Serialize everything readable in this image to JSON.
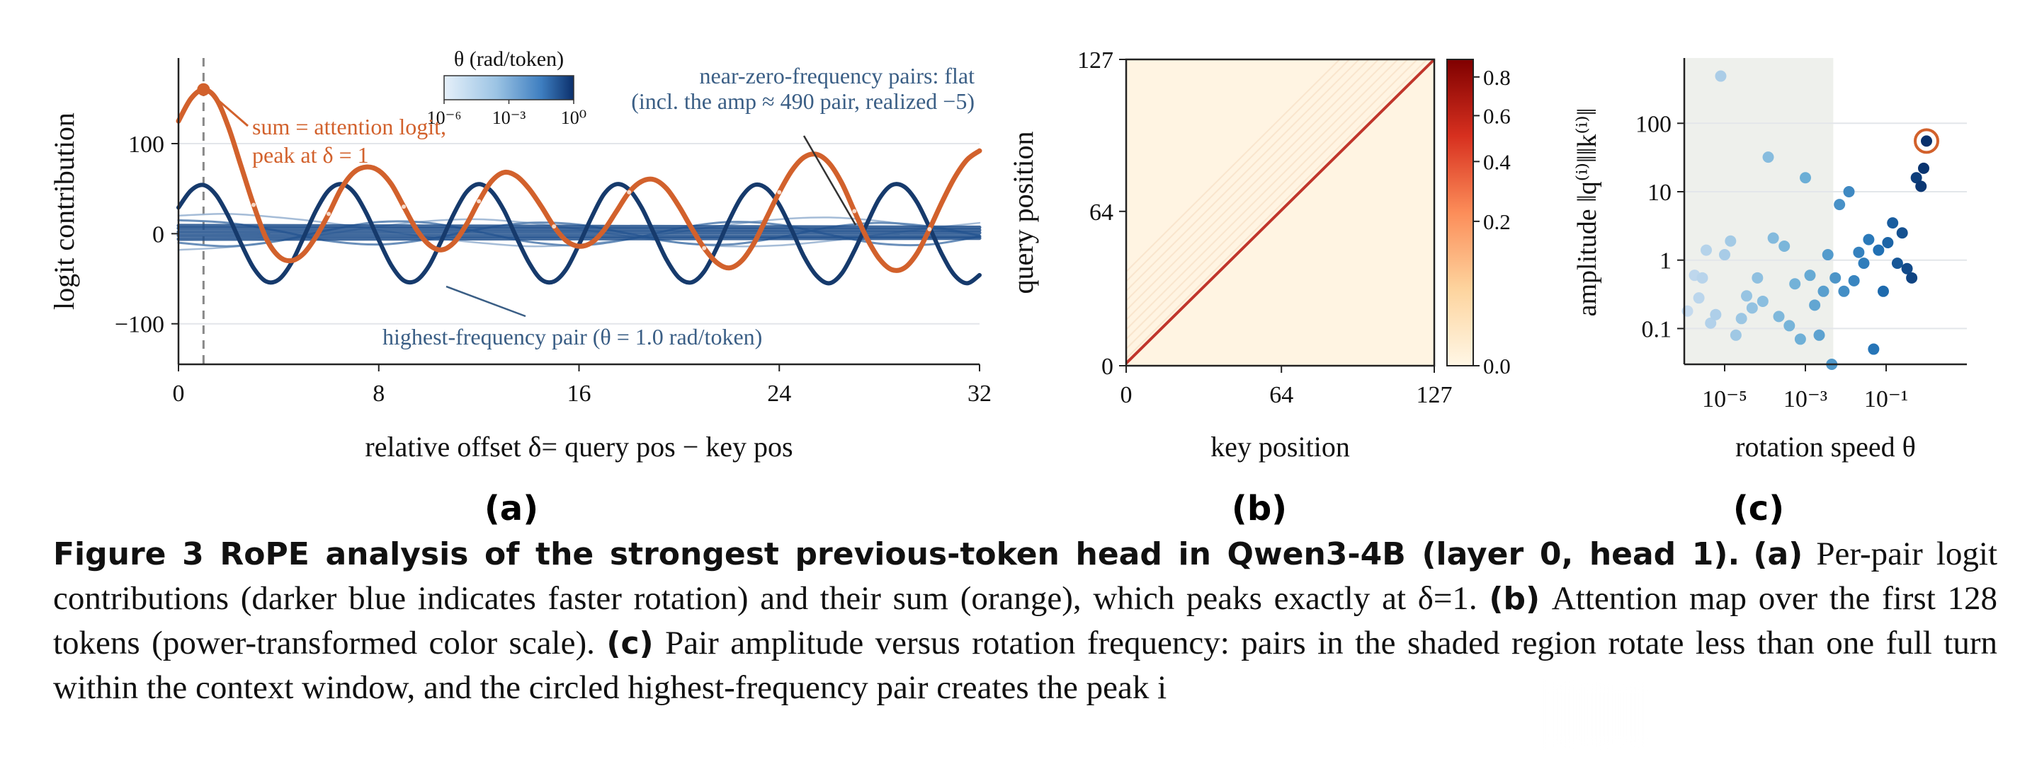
{
  "figure": {
    "caption_title": "Figure 3  RoPE analysis of the strongest previous-token head in Qwen3-4B (layer 0, head 1).",
    "caption_parts": [
      {
        "label": "(a)",
        "text": " Per-pair logit contributions (darker blue indicates faster rotation) and their sum (orange), which peaks exactly at δ=1. "
      },
      {
        "label": "(b)",
        "text": " Attention map over the first 128 tokens (power-transformed color scale). "
      },
      {
        "label": "(c)",
        "text": " Pair amplitude versus rotation frequency: pairs in the shaded region rotate less than one full turn within the context window, and the circled highest-frequency pair creates the peak i"
      }
    ],
    "panel_labels": [
      "(a)",
      "(b)",
      "(c)"
    ]
  },
  "colors": {
    "orange": "#d2612c",
    "dark_blue": "#163a6c",
    "mid_blue": "#2d6fb4",
    "light_blue": "#a8cbe6",
    "shade": "#eef0ec",
    "heat_bg": "#fff4e2",
    "heat_diag": "#c0352b",
    "annot_blue": "#3a5e85"
  },
  "chart_data": [
    {
      "type": "line",
      "xlabel": "relative offset  δ= query pos − key pos",
      "ylabel": "logit contribution",
      "xlim": [
        0,
        32
      ],
      "ylim": [
        -145,
        195
      ],
      "xticks": [
        0,
        8,
        16,
        24,
        32
      ],
      "yticks": [
        -100,
        0,
        100
      ],
      "ytick_labels": [
        "−100",
        "0",
        "100"
      ],
      "vline_x": 1,
      "colorbar": {
        "title": "θ (rad/token)",
        "tick_labels": [
          "10⁻⁶",
          "10⁻³",
          "10⁰"
        ]
      },
      "annotations": {
        "sum": [
          "sum = attention logit,",
          "peak at δ = 1"
        ],
        "flat": [
          "near-zero-frequency pairs: flat",
          "(incl. the amp ≈ 490 pair, realized −5)"
        ],
        "highest": "highest-frequency pair (θ = 1.0 rad/token)"
      },
      "series": [
        {
          "name": "sum = attention logit",
          "kind": "sum",
          "x": [
            0,
            0.5,
            1,
            1.5,
            2,
            2.5,
            3,
            3.5,
            4,
            4.5,
            5,
            5.5,
            6,
            6.5,
            7,
            7.5,
            8,
            8.5,
            9,
            9.5,
            10,
            10.5,
            11,
            11.5,
            12,
            12.5,
            13,
            13.5,
            14,
            14.5,
            15,
            15.5,
            16,
            16.5,
            17,
            17.5,
            18,
            18.5,
            19,
            19.5,
            20,
            20.5,
            21,
            21.5,
            22,
            22.5,
            23,
            23.5,
            24,
            24.5,
            25,
            25.5,
            26,
            26.5,
            27,
            27.5,
            28,
            28.5,
            29,
            29.5,
            30,
            30.5,
            31,
            31.5,
            32
          ],
          "y": [
            125,
            150,
            160,
            150,
            118,
            75,
            32,
            -5,
            -25,
            -30,
            -22,
            -3,
            22,
            50,
            68,
            74,
            70,
            55,
            30,
            5,
            -12,
            -18,
            -10,
            10,
            36,
            58,
            68,
            64,
            50,
            30,
            8,
            -8,
            -14,
            -10,
            4,
            25,
            46,
            58,
            60,
            50,
            30,
            6,
            -16,
            -32,
            -38,
            -30,
            -10,
            18,
            46,
            70,
            85,
            88,
            78,
            56,
            25,
            -5,
            -28,
            -40,
            -38,
            -22,
            5,
            35,
            62,
            82,
            92
          ]
        },
        {
          "name": "highest-frequency pair (θ = 1.0 rad/token)",
          "kind": "highest",
          "x": [
            0,
            0.5,
            1,
            1.5,
            2,
            2.5,
            3,
            3.5,
            4,
            4.5,
            5,
            5.5,
            6,
            6.5,
            7,
            7.5,
            8,
            8.5,
            9,
            9.5,
            10,
            10.5,
            11,
            11.5,
            12,
            12.5,
            13,
            13.5,
            14,
            14.5,
            15,
            15.5,
            16,
            16.5,
            17,
            17.5,
            18,
            18.5,
            19,
            19.5,
            20,
            20.5,
            21,
            21.5,
            22,
            22.5,
            23,
            23.5,
            24,
            24.5,
            25,
            25.5,
            26,
            26.5,
            27,
            27.5,
            28,
            28.5,
            29,
            29.5,
            30,
            30.5,
            31,
            31.5,
            32
          ],
          "y": [
            29,
            48,
            54,
            43,
            19,
            -11,
            -38,
            -53,
            -51,
            -33,
            -4,
            26,
            48,
            55,
            46,
            23,
            -7,
            -35,
            -52,
            -52,
            -36,
            -8,
            22,
            46,
            55,
            47,
            26,
            -4,
            -32,
            -51,
            -53,
            -39,
            -12,
            18,
            44,
            55,
            49,
            29,
            0,
            -29,
            -49,
            -54,
            -42,
            -16,
            15,
            41,
            54,
            50,
            32,
            4,
            -26,
            -47,
            -55,
            -44,
            -19,
            11,
            39,
            54,
            52,
            35,
            7,
            -23,
            -46,
            -55,
            -46
          ]
        },
        {
          "name": "",
          "kind": "mid",
          "x": [
            0,
            2,
            4,
            6,
            8,
            10,
            12,
            14,
            16,
            18,
            20,
            22,
            24,
            26,
            28,
            30,
            32
          ],
          "y": [
            15,
            12,
            3,
            -8,
            -12,
            -6,
            5,
            12,
            10,
            0,
            -10,
            -12,
            -4,
            7,
            12,
            8,
            -2
          ]
        },
        {
          "name": "",
          "kind": "mid",
          "x": [
            0,
            2,
            4,
            6,
            8,
            10,
            12,
            14,
            16,
            18,
            20,
            22,
            24,
            26,
            28,
            30,
            32
          ],
          "y": [
            -10,
            -14,
            -8,
            4,
            13,
            12,
            2,
            -9,
            -13,
            -6,
            6,
            13,
            10,
            -1,
            -11,
            -12,
            -3
          ]
        },
        {
          "name": "",
          "kind": "light",
          "x": [
            0,
            2,
            4,
            6,
            8,
            10,
            12,
            14,
            16,
            18,
            20,
            22,
            24,
            26,
            28,
            30,
            32
          ],
          "y": [
            20,
            22,
            18,
            12,
            4,
            -4,
            -10,
            -14,
            -12,
            -6,
            2,
            10,
            16,
            18,
            14,
            6,
            -2
          ]
        },
        {
          "name": "",
          "kind": "light",
          "x": [
            0,
            2,
            4,
            6,
            8,
            10,
            12,
            14,
            16,
            18,
            20,
            22,
            24,
            26,
            28,
            30,
            32
          ],
          "y": [
            -18,
            -15,
            -8,
            0,
            8,
            14,
            16,
            12,
            5,
            -3,
            -10,
            -14,
            -13,
            -8,
            -1,
            6,
            12
          ]
        },
        {
          "name": "",
          "kind": "flat",
          "x": [
            0,
            32
          ],
          "y": [
            6,
            4
          ]
        },
        {
          "name": "",
          "kind": "flat",
          "x": [
            0,
            32
          ],
          "y": [
            2,
            1
          ]
        },
        {
          "name": "",
          "kind": "flat",
          "x": [
            0,
            32
          ],
          "y": [
            -2,
            -3
          ]
        },
        {
          "name": "",
          "kind": "flat",
          "x": [
            0,
            32
          ],
          "y": [
            -6,
            -5
          ]
        },
        {
          "name": "",
          "kind": "flat",
          "x": [
            0,
            32
          ],
          "y": [
            9,
            7
          ]
        }
      ],
      "peak_point": {
        "x": 1,
        "y": 160
      }
    },
    {
      "type": "heatmap",
      "xlabel": "key position",
      "ylabel": "query position",
      "xticks": [
        0,
        64,
        127
      ],
      "yticks": [
        0,
        64,
        127
      ],
      "colorbar_ticks": [
        0.0,
        0.2,
        0.4,
        0.6,
        0.8
      ],
      "colorbar_tick_labels": [
        "0.0",
        "0.2",
        "0.4",
        "0.6",
        "0.8"
      ],
      "description_values": {
        "diagonal_offset": 1,
        "size": 128
      }
    },
    {
      "type": "scatter",
      "xlabel": "rotation speed θ",
      "ylabel": "amplitude  ‖q⁽ⁱ⁾‖‖k⁽ⁱ⁾‖",
      "xscale": "log",
      "yscale": "log",
      "xlim": [
        1e-06,
        10
      ],
      "ylim": [
        0.03,
        900
      ],
      "xtick_labels": [
        "10⁻⁵",
        "10⁻³",
        "10⁻¹"
      ],
      "xticks": [
        1e-05,
        0.001,
        0.1
      ],
      "yticks": [
        0.1,
        1,
        10,
        100
      ],
      "ytick_labels": [
        "0.1",
        "1",
        "10",
        "100"
      ],
      "shaded_x_max": 0.0049,
      "circled_point": {
        "x": 1.0,
        "y": 55
      },
      "points": [
        {
          "x": 1.2e-06,
          "y": 0.18
        },
        {
          "x": 1.8e-06,
          "y": 0.6
        },
        {
          "x": 2.3e-06,
          "y": 0.28
        },
        {
          "x": 2.8e-06,
          "y": 0.55
        },
        {
          "x": 3.5e-06,
          "y": 1.4
        },
        {
          "x": 4.5e-06,
          "y": 0.12
        },
        {
          "x": 6e-06,
          "y": 0.16
        },
        {
          "x": 8e-06,
          "y": 490
        },
        {
          "x": 1e-05,
          "y": 1.2
        },
        {
          "x": 1.4e-05,
          "y": 1.9
        },
        {
          "x": 1.9e-05,
          "y": 0.08
        },
        {
          "x": 2.6e-05,
          "y": 0.14
        },
        {
          "x": 3.5e-05,
          "y": 0.3
        },
        {
          "x": 4.8e-05,
          "y": 0.2
        },
        {
          "x": 6.5e-05,
          "y": 0.55
        },
        {
          "x": 8.8e-05,
          "y": 0.25
        },
        {
          "x": 0.00012,
          "y": 32
        },
        {
          "x": 0.00016,
          "y": 2.1
        },
        {
          "x": 0.00022,
          "y": 0.15
        },
        {
          "x": 0.0003,
          "y": 1.6
        },
        {
          "x": 0.0004,
          "y": 0.11
        },
        {
          "x": 0.00055,
          "y": 0.45
        },
        {
          "x": 0.00075,
          "y": 0.07
        },
        {
          "x": 0.001,
          "y": 16
        },
        {
          "x": 0.0013,
          "y": 0.6
        },
        {
          "x": 0.0017,
          "y": 0.22
        },
        {
          "x": 0.0022,
          "y": 0.08
        },
        {
          "x": 0.0028,
          "y": 0.35
        },
        {
          "x": 0.0036,
          "y": 1.2
        },
        {
          "x": 0.0045,
          "y": 0.03
        },
        {
          "x": 0.0055,
          "y": 0.55
        },
        {
          "x": 0.007,
          "y": 6.5
        },
        {
          "x": 0.009,
          "y": 0.35
        },
        {
          "x": 0.012,
          "y": 10
        },
        {
          "x": 0.016,
          "y": 0.5
        },
        {
          "x": 0.021,
          "y": 1.3
        },
        {
          "x": 0.028,
          "y": 0.9
        },
        {
          "x": 0.037,
          "y": 2.0
        },
        {
          "x": 0.049,
          "y": 0.05
        },
        {
          "x": 0.065,
          "y": 1.4
        },
        {
          "x": 0.085,
          "y": 0.35
        },
        {
          "x": 0.11,
          "y": 1.8
        },
        {
          "x": 0.145,
          "y": 3.5
        },
        {
          "x": 0.19,
          "y": 0.9
        },
        {
          "x": 0.25,
          "y": 2.5
        },
        {
          "x": 0.33,
          "y": 0.75
        },
        {
          "x": 0.43,
          "y": 0.55
        },
        {
          "x": 0.56,
          "y": 16
        },
        {
          "x": 0.73,
          "y": 12
        },
        {
          "x": 0.85,
          "y": 22
        },
        {
          "x": 1.0,
          "y": 55
        }
      ]
    }
  ]
}
